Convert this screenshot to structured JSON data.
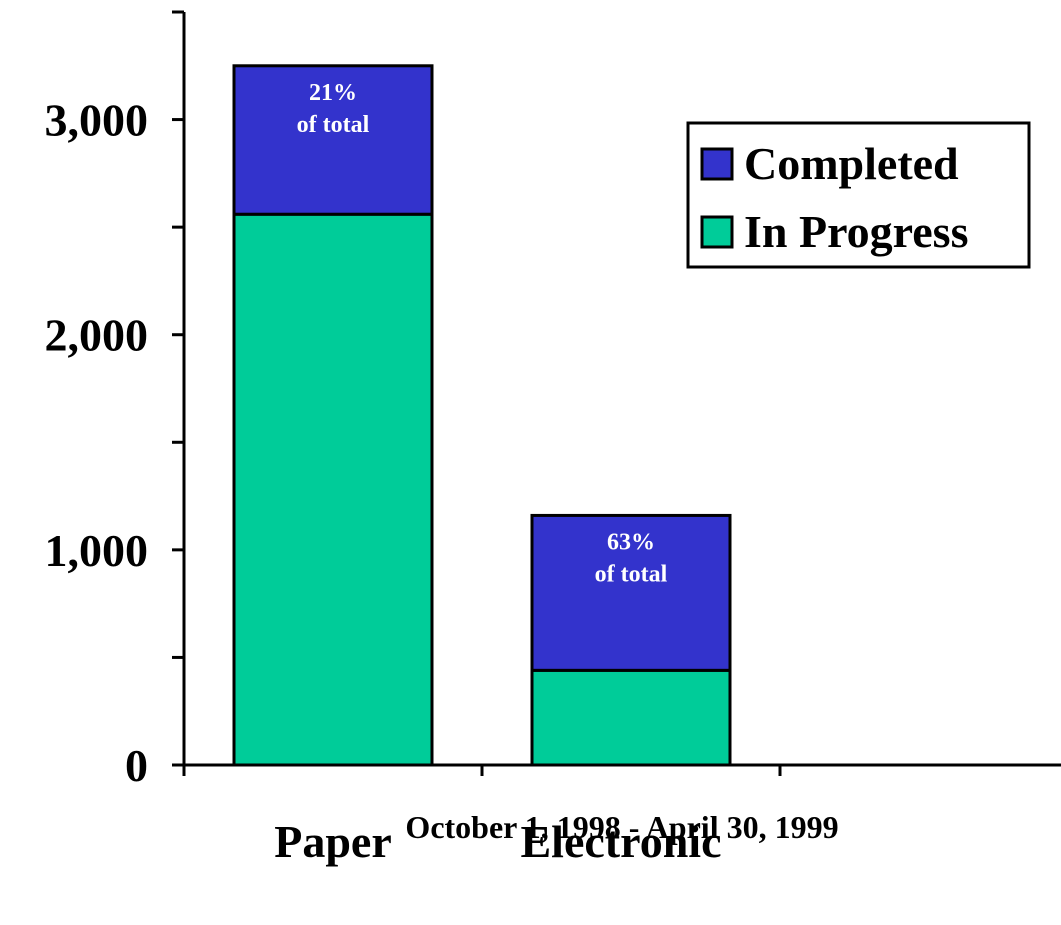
{
  "chart_data": {
    "type": "bar",
    "stacked": true,
    "categories": [
      "Paper",
      "Electronic"
    ],
    "series": [
      {
        "name": "In Progress",
        "values": [
          2560,
          440
        ],
        "color": "#00CC99"
      },
      {
        "name": "Completed",
        "values": [
          690,
          720
        ],
        "color": "#3333CC"
      }
    ],
    "data_labels": [
      {
        "category": "Paper",
        "series": "Completed",
        "lines": [
          "21%",
          "of total"
        ]
      },
      {
        "category": "Electronic",
        "series": "Completed",
        "lines": [
          "63%",
          "of total"
        ]
      }
    ],
    "legend": {
      "placement": "top-right",
      "entries": [
        {
          "label": "Completed",
          "color": "#3333CC"
        },
        {
          "label": "In Progress",
          "color": "#00CC99"
        }
      ]
    },
    "yticks": [
      {
        "value": 0,
        "label": "0"
      },
      {
        "value": 500,
        "label": ""
      },
      {
        "value": 1000,
        "label": "1,000"
      },
      {
        "value": 1500,
        "label": ""
      },
      {
        "value": 2000,
        "label": "2,000"
      },
      {
        "value": 2500,
        "label": ""
      },
      {
        "value": 3000,
        "label": "3,000"
      },
      {
        "value": 3500,
        "label": ""
      }
    ],
    "ylim": [
      0,
      3500
    ],
    "grid": false,
    "xlabel": "October 1, 1998 - April 30, 1999",
    "ylabel": "",
    "title": ""
  }
}
